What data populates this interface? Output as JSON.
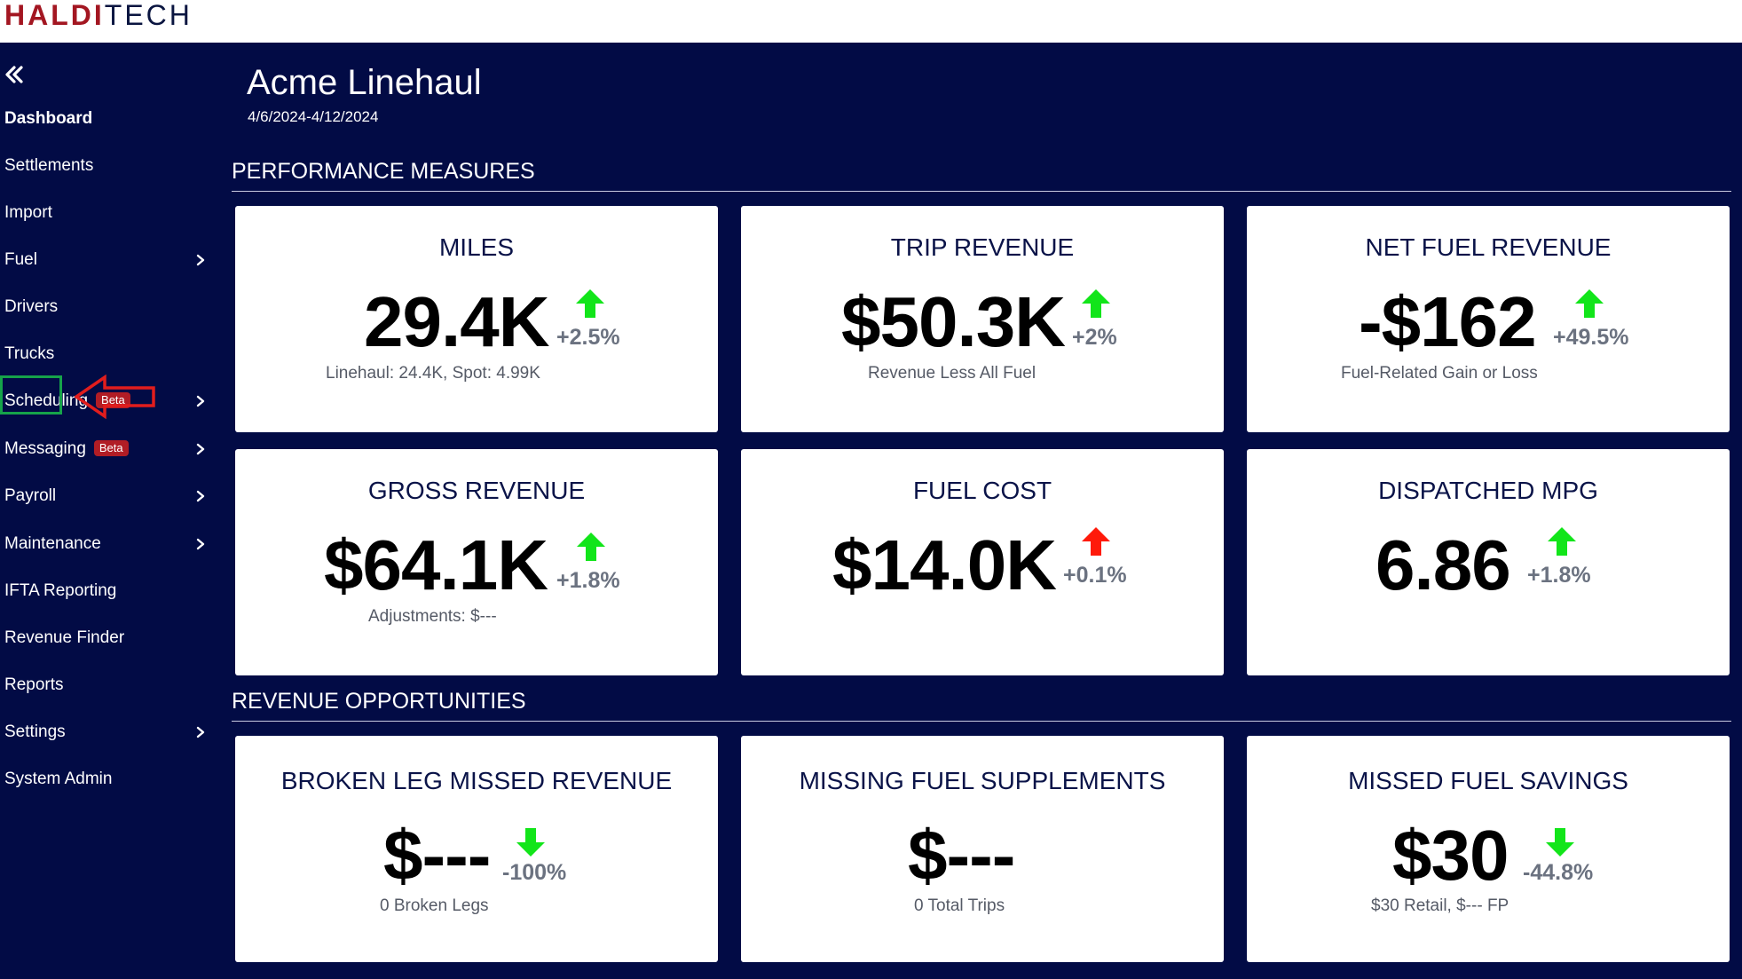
{
  "brand": {
    "part1": "HALDI",
    "part2": "TECH"
  },
  "sidebar": {
    "items": [
      {
        "label": "Dashboard",
        "active": true,
        "chevron": false
      },
      {
        "label": "Settlements",
        "chevron": false
      },
      {
        "label": "Import",
        "chevron": false
      },
      {
        "label": "Fuel",
        "chevron": true
      },
      {
        "label": "Drivers",
        "chevron": false
      },
      {
        "label": "Trucks",
        "chevron": false,
        "highlighted": true
      },
      {
        "label": "Scheduling",
        "chevron": true,
        "badge": "Beta"
      },
      {
        "label": "Messaging",
        "chevron": true,
        "badge": "Beta"
      },
      {
        "label": "Payroll",
        "chevron": true
      },
      {
        "label": "Maintenance",
        "chevron": true
      },
      {
        "label": "IFTA Reporting",
        "chevron": false
      },
      {
        "label": "Revenue Finder",
        "chevron": false
      },
      {
        "label": "Reports",
        "chevron": false
      },
      {
        "label": "Settings",
        "chevron": true
      },
      {
        "label": "System Admin",
        "chevron": false
      }
    ]
  },
  "header": {
    "title": "Acme Linehaul",
    "date_range": "4/6/2024-4/12/2024"
  },
  "sections": {
    "performance": "PERFORMANCE MEASURES",
    "revenue": "REVENUE OPPORTUNITIES"
  },
  "cards": {
    "miles": {
      "title": "MILES",
      "value": "29.4K",
      "change": "+2.5%",
      "trend": "up-green",
      "sub": "Linehaul: 24.4K, Spot: 4.99K"
    },
    "trip_revenue": {
      "title": "TRIP REVENUE",
      "value": "$50.3K",
      "change": "+2%",
      "trend": "up-green",
      "sub": "Revenue Less All Fuel"
    },
    "net_fuel_revenue": {
      "title": "NET FUEL REVENUE",
      "value": "-$162",
      "change": "+49.5%",
      "trend": "up-green",
      "sub": "Fuel-Related Gain or Loss"
    },
    "gross_revenue": {
      "title": "GROSS REVENUE",
      "value": "$64.1K",
      "change": "+1.8%",
      "trend": "up-green",
      "sub": "Adjustments: $---"
    },
    "fuel_cost": {
      "title": "FUEL COST",
      "value": "$14.0K",
      "change": "+0.1%",
      "trend": "up-red",
      "sub": ""
    },
    "dispatched_mpg": {
      "title": "DISPATCHED MPG",
      "value": "6.86",
      "change": "+1.8%",
      "trend": "up-green",
      "sub": ""
    },
    "broken_leg": {
      "title": "BROKEN LEG MISSED REVENUE",
      "value": "$---",
      "change": "-100%",
      "trend": "down-green",
      "sub": "0 Broken Legs"
    },
    "missing_fuel": {
      "title": "MISSING FUEL SUPPLEMENTS",
      "value": "$---",
      "change": "",
      "trend": "none",
      "sub": "0 Total Trips"
    },
    "missed_fuel_savings": {
      "title": "MISSED FUEL SAVINGS",
      "value": "$30",
      "change": "-44.8%",
      "trend": "down-green",
      "sub": "$30 Retail, $--- FP"
    }
  },
  "colors": {
    "navy": "#020b45",
    "up_green": "#12e51a",
    "up_red": "#ff1a0a",
    "brand_red": "#a31621",
    "beta_red": "#b11d25",
    "annotation_green": "#16a34a",
    "annotation_red": "#e11d1d"
  }
}
